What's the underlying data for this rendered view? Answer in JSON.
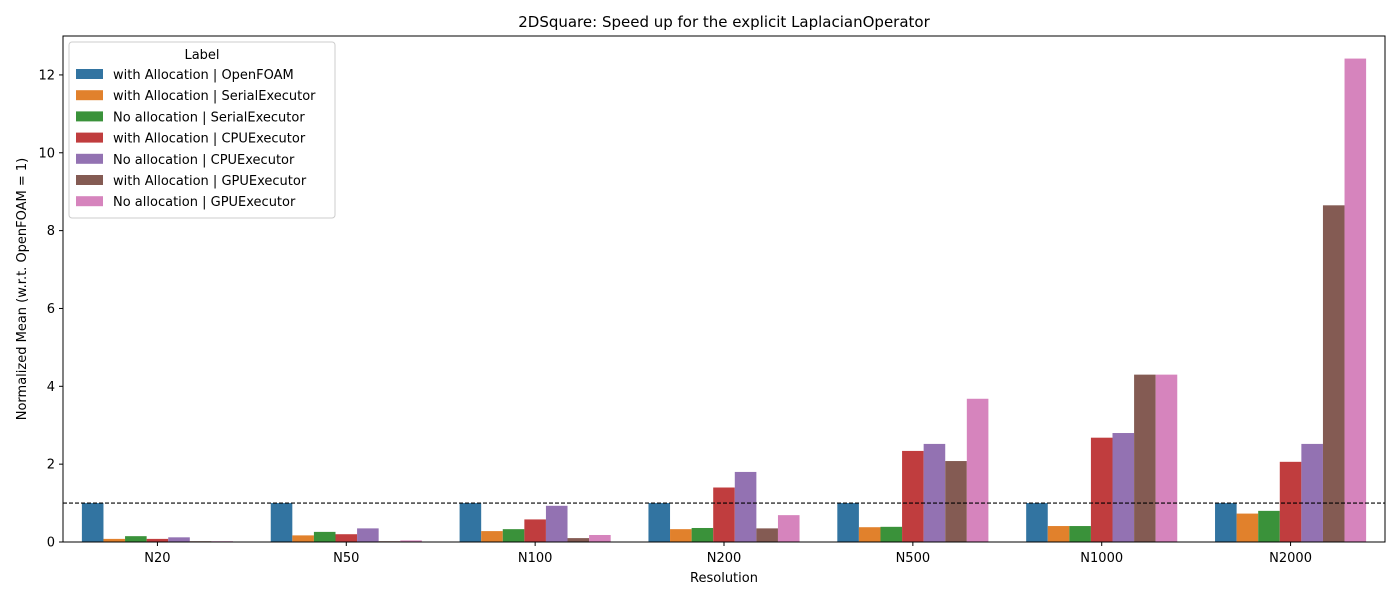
{
  "chart_data": {
    "type": "bar",
    "title": "2DSquare: Speed up for the explicit LaplacianOperator",
    "xlabel": "Resolution",
    "ylabel": "Normalized Mean (w.r.t. OpenFOAM = 1)",
    "ylim": [
      0,
      13
    ],
    "yticks": [
      0,
      2,
      4,
      6,
      8,
      10,
      12
    ],
    "reference_line": {
      "y": 1,
      "style": "dashed",
      "color": "#000000"
    },
    "legend": {
      "title": "Label",
      "placement": "top-left"
    },
    "categories": [
      "N20",
      "N50",
      "N100",
      "N200",
      "N500",
      "N1000",
      "N2000"
    ],
    "series": [
      {
        "name": "with Allocation | OpenFOAM",
        "color": "#3274a1",
        "values": [
          1,
          1,
          1,
          1,
          1,
          1,
          1
        ]
      },
      {
        "name": "with Allocation | SerialExecutor",
        "color": "#e1812c",
        "values": [
          0.08,
          0.17,
          0.28,
          0.33,
          0.38,
          0.41,
          0.73
        ]
      },
      {
        "name": "No allocation | SerialExecutor",
        "color": "#3a923a",
        "values": [
          0.15,
          0.26,
          0.33,
          0.36,
          0.39,
          0.41,
          0.8
        ]
      },
      {
        "name": "with Allocation | CPUExecutor",
        "color": "#c03d3e",
        "values": [
          0.08,
          0.2,
          0.58,
          1.4,
          2.34,
          2.68,
          2.06
        ]
      },
      {
        "name": "No allocation | CPUExecutor",
        "color": "#9372b2",
        "values": [
          0.12,
          0.35,
          0.93,
          1.8,
          2.52,
          2.8,
          2.52
        ]
      },
      {
        "name": "with Allocation | GPUExecutor",
        "color": "#845b53",
        "values": [
          0.02,
          0.02,
          0.1,
          0.35,
          2.08,
          4.3,
          8.65
        ]
      },
      {
        "name": "No allocation | GPUExecutor",
        "color": "#d684bd",
        "values": [
          0.02,
          0.04,
          0.18,
          0.69,
          3.68,
          4.3,
          12.42
        ]
      }
    ]
  }
}
